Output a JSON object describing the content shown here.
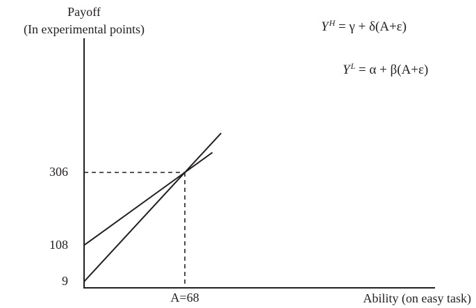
{
  "chart_data": {
    "type": "line",
    "title": "",
    "ylabel_line1": "Payoff",
    "ylabel_line2": "(In experimental points)",
    "xlabel": "Ability (on easy task)",
    "y_ticks": [
      {
        "value": 9,
        "label": "9"
      },
      {
        "value": 108,
        "label": "108"
      },
      {
        "value": 306,
        "label": "306"
      }
    ],
    "x_ticks": [
      {
        "value": 68,
        "label": "A=68"
      }
    ],
    "intersection": {
      "x": 68,
      "y": 306
    },
    "series": [
      {
        "name_var": "Y",
        "name_sup": "H",
        "name_expr": " = γ + δ(A+ε)",
        "points": [
          [
            0,
            9
          ],
          [
            68,
            306
          ]
        ]
      },
      {
        "name_var": "Y",
        "name_sup": "L",
        "name_expr": " = α + β(A+ε)",
        "points": [
          [
            0,
            108
          ],
          [
            68,
            306
          ]
        ]
      }
    ],
    "grid": false,
    "colors": {
      "ink": "#231f20",
      "background": "#ffffff"
    }
  }
}
